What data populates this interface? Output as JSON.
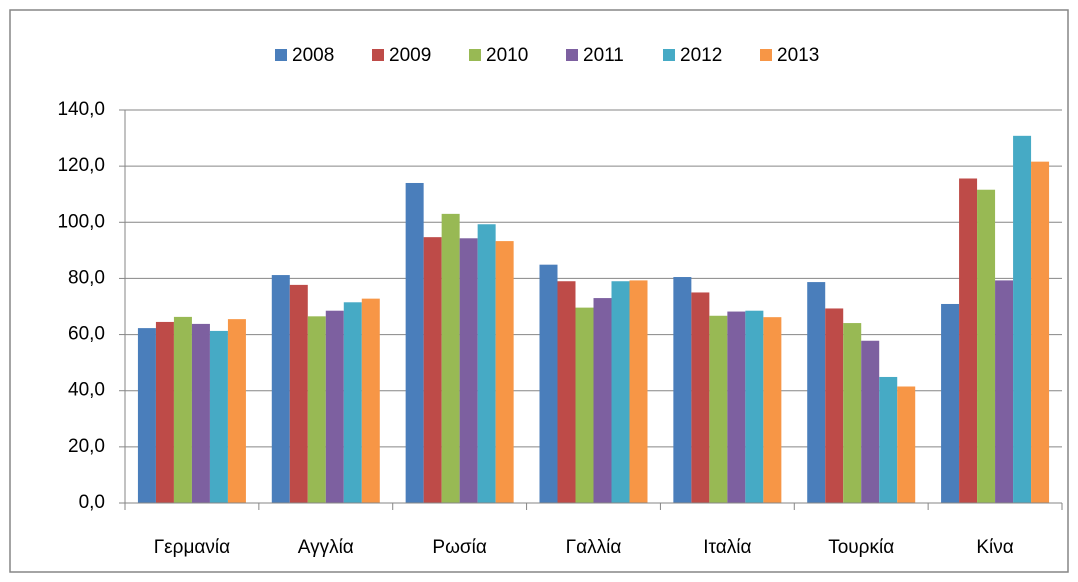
{
  "chart_data": {
    "type": "bar",
    "categories": [
      "Γερμανία",
      "Αγγλία",
      "Ρωσία",
      "Γαλλία",
      "Ιταλία",
      "Τουρκία",
      "Κίνα"
    ],
    "series": [
      {
        "name": "2008",
        "color": "#4a7ebb",
        "values": [
          62.3,
          81.2,
          114.0,
          84.9,
          80.5,
          78.7,
          70.9
        ]
      },
      {
        "name": "2009",
        "color": "#be4b48",
        "values": [
          64.5,
          77.7,
          94.7,
          79.0,
          75.0,
          69.3,
          115.6
        ]
      },
      {
        "name": "2010",
        "color": "#98b954",
        "values": [
          66.3,
          66.5,
          103.0,
          69.6,
          66.7,
          64.1,
          111.6
        ]
      },
      {
        "name": "2011",
        "color": "#7d60a0",
        "values": [
          63.8,
          68.5,
          94.3,
          73.0,
          68.2,
          57.8,
          79.3
        ]
      },
      {
        "name": "2012",
        "color": "#46aac5",
        "values": [
          61.3,
          71.5,
          99.3,
          79.0,
          68.5,
          44.9,
          130.8
        ]
      },
      {
        "name": "2013",
        "color": "#f79646",
        "values": [
          65.5,
          72.8,
          93.3,
          79.3,
          66.2,
          41.5,
          121.6
        ]
      }
    ],
    "ylim": [
      0,
      140
    ],
    "yticks": [
      {
        "value": 0,
        "label": "0,0"
      },
      {
        "value": 20,
        "label": "20,0"
      },
      {
        "value": 40,
        "label": "40,0"
      },
      {
        "value": 60,
        "label": "60,0"
      },
      {
        "value": 80,
        "label": "80,0"
      },
      {
        "value": 100,
        "label": "100,0"
      },
      {
        "value": 120,
        "label": "120,0"
      },
      {
        "value": 140,
        "label": "140,0"
      }
    ],
    "grid": true,
    "legend": "top"
  }
}
